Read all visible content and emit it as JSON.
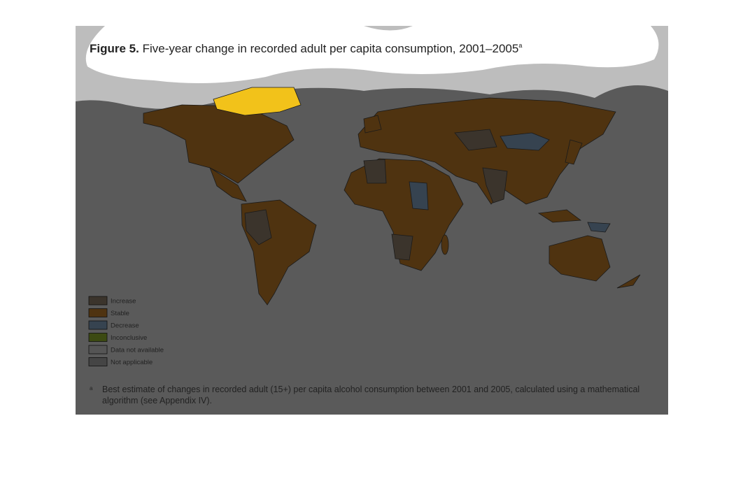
{
  "header": {
    "label": "Figure 5.",
    "title": "Five-year change in recorded adult per capita consumption, 2001–2005",
    "title_note": "a"
  },
  "legend": {
    "items": [
      {
        "label": "Increase",
        "color": "#3b342c"
      },
      {
        "label": "Stable",
        "color": "#4f3310"
      },
      {
        "label": "Decrease",
        "color": "#364350"
      },
      {
        "label": "Inconclusive",
        "color": "#3c4a12"
      },
      {
        "label": "Data not available",
        "color": "#555555"
      },
      {
        "label": "Not applicable",
        "color": "#454545"
      }
    ]
  },
  "footnote": {
    "marker": "a",
    "text": "Best estimate of changes in recorded adult (15+) per capita alcohol consumption between 2001 and 2005, calculated using a mathematical algorithm (see Appendix IV)."
  }
}
